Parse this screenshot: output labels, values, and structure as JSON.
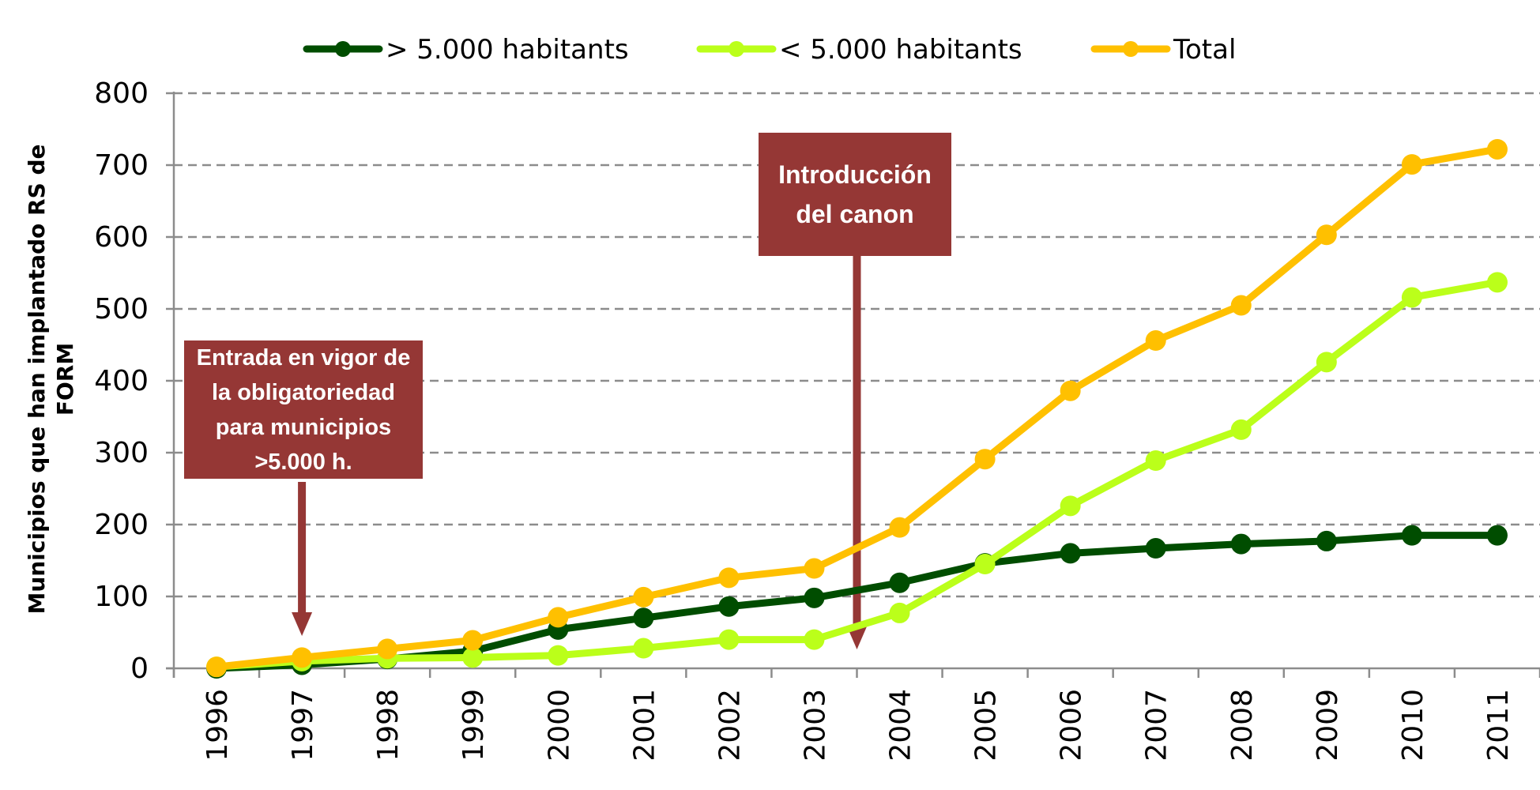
{
  "chart_data": {
    "type": "line",
    "title": "",
    "xlabel": "",
    "ylabel": "Municipios que han implantado RS de FORM",
    "ylabel_lines": [
      "Municipios que han implantado RS de",
      "FORM"
    ],
    "ylim": [
      0,
      800
    ],
    "yticks": [
      0,
      100,
      200,
      300,
      400,
      500,
      600,
      700,
      800
    ],
    "grid": "horizontal-dashed",
    "legend_position": "top",
    "categories": [
      "1996",
      "1997",
      "1998",
      "1999",
      "2000",
      "2001",
      "2002",
      "2003",
      "2004",
      "2005",
      "2006",
      "2007",
      "2008",
      "2009",
      "2010",
      "2011"
    ],
    "series": [
      {
        "name": "> 5.000 habitants",
        "color": "#004d00",
        "values": [
          0,
          5,
          13,
          24,
          54,
          70,
          86,
          98,
          119,
          146,
          160,
          167,
          173,
          177,
          185,
          185
        ]
      },
      {
        "name": "< 5.000 habitants",
        "color": "#bbff1a",
        "values": [
          2,
          10,
          14,
          15,
          18,
          28,
          40,
          40,
          77,
          145,
          226,
          289,
          332,
          426,
          516,
          537
        ]
      },
      {
        "name": "Total",
        "color": "#ffc000",
        "values": [
          2,
          15,
          27,
          39,
          71,
          99,
          126,
          139,
          196,
          291,
          386,
          456,
          505,
          603,
          701,
          722
        ]
      }
    ],
    "annotations": [
      {
        "text": "Entrada en vigor de\nla obligatoriedad\npara municipios\n>5.000 h.",
        "points_to_year": "1997",
        "color": "#953735"
      },
      {
        "text": "Introducción\ndel canon",
        "points_to_between": [
          "2003",
          "2004"
        ],
        "color": "#953735"
      }
    ]
  }
}
